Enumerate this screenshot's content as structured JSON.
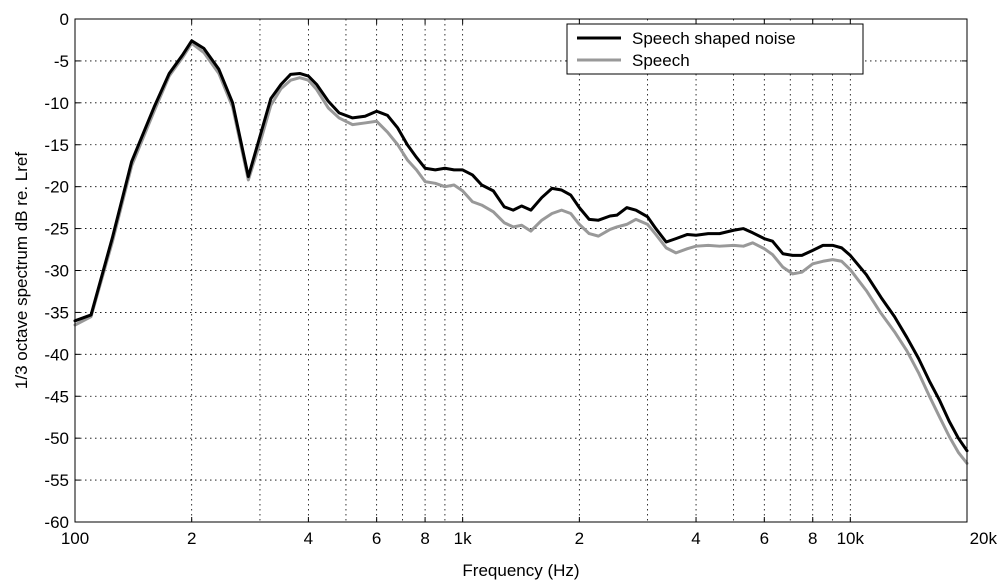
{
  "chart_data": {
    "type": "line",
    "xlabel": "Frequency (Hz)",
    "ylabel": "1/3 octave spectrum dB re. Lref",
    "xscale": "log",
    "xlim": [
      100,
      20000
    ],
    "ylim": [
      -60,
      0
    ],
    "grid": true,
    "legend_position": "top-right",
    "x_ticks": [
      {
        "value": 100,
        "label": "100"
      },
      {
        "value": 200,
        "label": "2"
      },
      {
        "value": 400,
        "label": "4"
      },
      {
        "value": 600,
        "label": "6"
      },
      {
        "value": 800,
        "label": "8"
      },
      {
        "value": 1000,
        "label": "1k"
      },
      {
        "value": 2000,
        "label": "2"
      },
      {
        "value": 4000,
        "label": "4"
      },
      {
        "value": 6000,
        "label": "6"
      },
      {
        "value": 8000,
        "label": "8"
      },
      {
        "value": 10000,
        "label": "10k"
      },
      {
        "value": 20000,
        "label": "20k"
      }
    ],
    "x_minor_grid": [
      300,
      500,
      700,
      900,
      3000,
      5000,
      7000,
      9000
    ],
    "y_ticks": [
      0,
      -5,
      -10,
      -15,
      -20,
      -25,
      -30,
      -35,
      -40,
      -45,
      -50,
      -55,
      -60
    ],
    "series": [
      {
        "name": "Speech shaped noise",
        "color": "#000000",
        "x": [
          100,
          110,
          125,
          140,
          160,
          175,
          190,
          200,
          215,
          235,
          255,
          280,
          300,
          320,
          340,
          360,
          380,
          400,
          420,
          450,
          480,
          520,
          560,
          600,
          640,
          680,
          720,
          760,
          800,
          850,
          900,
          950,
          1000,
          1060,
          1120,
          1200,
          1280,
          1350,
          1420,
          1500,
          1600,
          1700,
          1800,
          1900,
          2000,
          2120,
          2240,
          2400,
          2500,
          2650,
          2800,
          3000,
          3150,
          3350,
          3550,
          3800,
          4000,
          4300,
          4600,
          5000,
          5300,
          5600,
          6000,
          6300,
          6700,
          7100,
          7500,
          8000,
          8500,
          9000,
          9500,
          10000,
          11000,
          12000,
          13000,
          14000,
          15000,
          16000,
          17000,
          18000,
          19000,
          20000
        ],
        "values": [
          -36,
          -35.3,
          -26,
          -17,
          -10.5,
          -6.5,
          -4.2,
          -2.6,
          -3.5,
          -6,
          -10,
          -18.8,
          -14,
          -9.5,
          -7.8,
          -6.6,
          -6.5,
          -6.8,
          -7.8,
          -9.8,
          -11.2,
          -11.8,
          -11.6,
          -11,
          -11.5,
          -13,
          -15,
          -16.5,
          -17.8,
          -18,
          -17.8,
          -18,
          -18,
          -18.6,
          -19.8,
          -20.5,
          -22.4,
          -22.8,
          -22.3,
          -22.8,
          -21.3,
          -20.2,
          -20.4,
          -21,
          -22.5,
          -23.9,
          -24,
          -23.5,
          -23.4,
          -22.5,
          -22.8,
          -23.6,
          -25,
          -26.6,
          -26.2,
          -25.7,
          -25.8,
          -25.6,
          -25.6,
          -25.2,
          -25,
          -25.5,
          -26.2,
          -26.5,
          -28,
          -28.2,
          -28.2,
          -27.6,
          -27,
          -27,
          -27.3,
          -28.2,
          -30.5,
          -33.2,
          -35.5,
          -38,
          -40.5,
          -43.2,
          -45.5,
          -48,
          -50,
          -51.5
        ]
      },
      {
        "name": "Speech",
        "color": "#999999",
        "x": [
          100,
          110,
          125,
          140,
          160,
          175,
          190,
          200,
          215,
          235,
          255,
          280,
          300,
          320,
          340,
          360,
          380,
          400,
          420,
          450,
          480,
          520,
          560,
          600,
          640,
          680,
          720,
          760,
          800,
          850,
          900,
          950,
          1000,
          1060,
          1120,
          1200,
          1280,
          1350,
          1420,
          1500,
          1600,
          1700,
          1800,
          1900,
          2000,
          2120,
          2240,
          2400,
          2500,
          2650,
          2800,
          3000,
          3150,
          3350,
          3550,
          3800,
          4000,
          4300,
          4600,
          5000,
          5300,
          5600,
          6000,
          6300,
          6700,
          7100,
          7500,
          8000,
          8500,
          9000,
          9500,
          10000,
          11000,
          12000,
          13000,
          14000,
          15000,
          16000,
          17000,
          18000,
          19000,
          20000
        ],
        "values": [
          -36.5,
          -35.5,
          -26.5,
          -17.5,
          -11,
          -6.8,
          -4.5,
          -2.9,
          -4,
          -6.5,
          -10.5,
          -19.2,
          -14.8,
          -10.3,
          -8.3,
          -7.3,
          -7,
          -7.3,
          -8.4,
          -10.6,
          -11.8,
          -12.6,
          -12.4,
          -12.2,
          -13.5,
          -15,
          -16.8,
          -18,
          -19.4,
          -19.6,
          -20,
          -19.8,
          -20.5,
          -21.8,
          -22.2,
          -23,
          -24.3,
          -24.8,
          -24.6,
          -25.3,
          -24,
          -23.2,
          -22.8,
          -23.2,
          -24.5,
          -25.6,
          -25.9,
          -25.1,
          -24.8,
          -24.5,
          -23.9,
          -24.5,
          -25.7,
          -27.3,
          -27.9,
          -27.4,
          -27.1,
          -27,
          -27.1,
          -27,
          -27.1,
          -26.7,
          -27.4,
          -28.1,
          -29.6,
          -30.4,
          -30.2,
          -29.2,
          -28.9,
          -28.7,
          -28.9,
          -29.9,
          -32.4,
          -35.1,
          -37.3,
          -39.6,
          -42.2,
          -45,
          -47.5,
          -49.8,
          -51.7,
          -53
        ]
      }
    ]
  }
}
